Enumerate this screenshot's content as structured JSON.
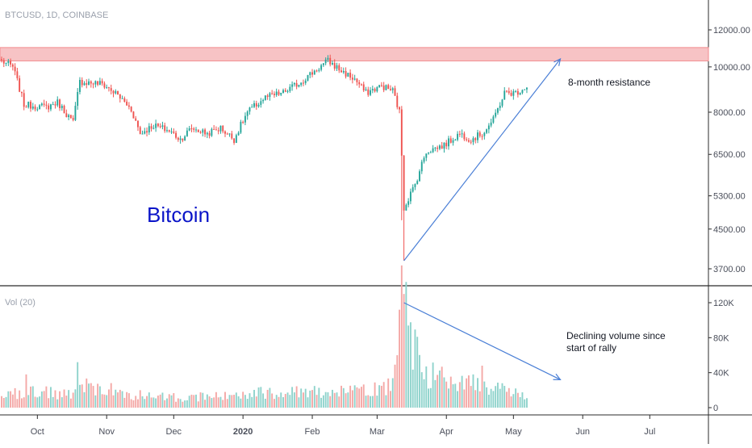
{
  "header": {
    "symbol_label": "BTCUSD, 1D, COINBASE"
  },
  "volume_label": "Vol (20)",
  "title_text": "Bitcoin",
  "annotations": {
    "resistance": "8-month resistance",
    "volume_line1": "Declining volume since",
    "volume_line2": "start of rally"
  },
  "colors": {
    "up": "#26a69a",
    "down": "#ef5350",
    "up_vol": "#8fd3cc",
    "down_vol": "#f4a8a6",
    "trendline": "#4a7fd6",
    "resistance_fill": "#f7c3c5",
    "resistance_edge": "#f28b8e",
    "bitcoin_text": "#0a14c8"
  },
  "chart_data": {
    "type": "candlestick",
    "symbol": "BTCUSD",
    "interval": "1D",
    "exchange": "COINBASE",
    "scale": "log",
    "price_axis_ticks": [
      3700,
      4500,
      5300,
      6500,
      8000,
      10000,
      12000
    ],
    "price_axis_labels": [
      "3700.00",
      "4500.00",
      "5300.00",
      "6500.00",
      "8000.00",
      "10000.00",
      "12000.00"
    ],
    "volume_axis_ticks": [
      0,
      40000,
      80000,
      120000
    ],
    "volume_axis_labels": [
      "0",
      "40K",
      "80K",
      "120K"
    ],
    "x_axis_labels": [
      "Oct",
      "Nov",
      "Dec",
      "2020",
      "Feb",
      "Mar",
      "Apr",
      "May",
      "Jun",
      "Jul"
    ],
    "resistance_zone": [
      10300,
      11000
    ],
    "price_waypoints": [
      [
        0,
        10300
      ],
      [
        5,
        10000
      ],
      [
        10,
        8300
      ],
      [
        20,
        8200
      ],
      [
        25,
        8400
      ],
      [
        32,
        7600
      ],
      [
        35,
        9300
      ],
      [
        45,
        9200
      ],
      [
        52,
        8700
      ],
      [
        58,
        8100
      ],
      [
        62,
        7200
      ],
      [
        68,
        7500
      ],
      [
        75,
        7300
      ],
      [
        80,
        7000
      ],
      [
        85,
        7400
      ],
      [
        92,
        7200
      ],
      [
        98,
        7400
      ],
      [
        104,
        7000
      ],
      [
        110,
        8000
      ],
      [
        118,
        8600
      ],
      [
        126,
        8800
      ],
      [
        134,
        9300
      ],
      [
        140,
        9800
      ],
      [
        146,
        10300
      ],
      [
        152,
        9800
      ],
      [
        158,
        9400
      ],
      [
        163,
        8800
      ],
      [
        170,
        9100
      ],
      [
        175,
        8900
      ],
      [
        178,
        8000
      ],
      [
        180,
        5000
      ],
      [
        185,
        5600
      ],
      [
        190,
        6600
      ],
      [
        198,
        6800
      ],
      [
        205,
        7200
      ],
      [
        210,
        7000
      ],
      [
        215,
        7200
      ],
      [
        220,
        7700
      ],
      [
        225,
        8800
      ],
      [
        230,
        8800
      ],
      [
        235,
        9100
      ]
    ],
    "volume_waypoints": [
      [
        0,
        10000
      ],
      [
        10,
        20000
      ],
      [
        30,
        15000
      ],
      [
        40,
        25000
      ],
      [
        60,
        14000
      ],
      [
        80,
        12000
      ],
      [
        100,
        13000
      ],
      [
        120,
        18000
      ],
      [
        140,
        20000
      ],
      [
        160,
        18000
      ],
      [
        175,
        25000
      ],
      [
        178,
        110000
      ],
      [
        180,
        128000
      ],
      [
        183,
        75000
      ],
      [
        190,
        40000
      ],
      [
        200,
        30000
      ],
      [
        215,
        25000
      ],
      [
        225,
        22000
      ],
      [
        235,
        15000
      ]
    ],
    "trendline": {
      "start": [
        "2020-03-13",
        3850
      ],
      "end": [
        "2020-05-22",
        10400
      ]
    },
    "volume_trendline": {
      "start": [
        "2020-03-13",
        120000
      ],
      "end": [
        "2020-05-22",
        32000
      ]
    }
  }
}
